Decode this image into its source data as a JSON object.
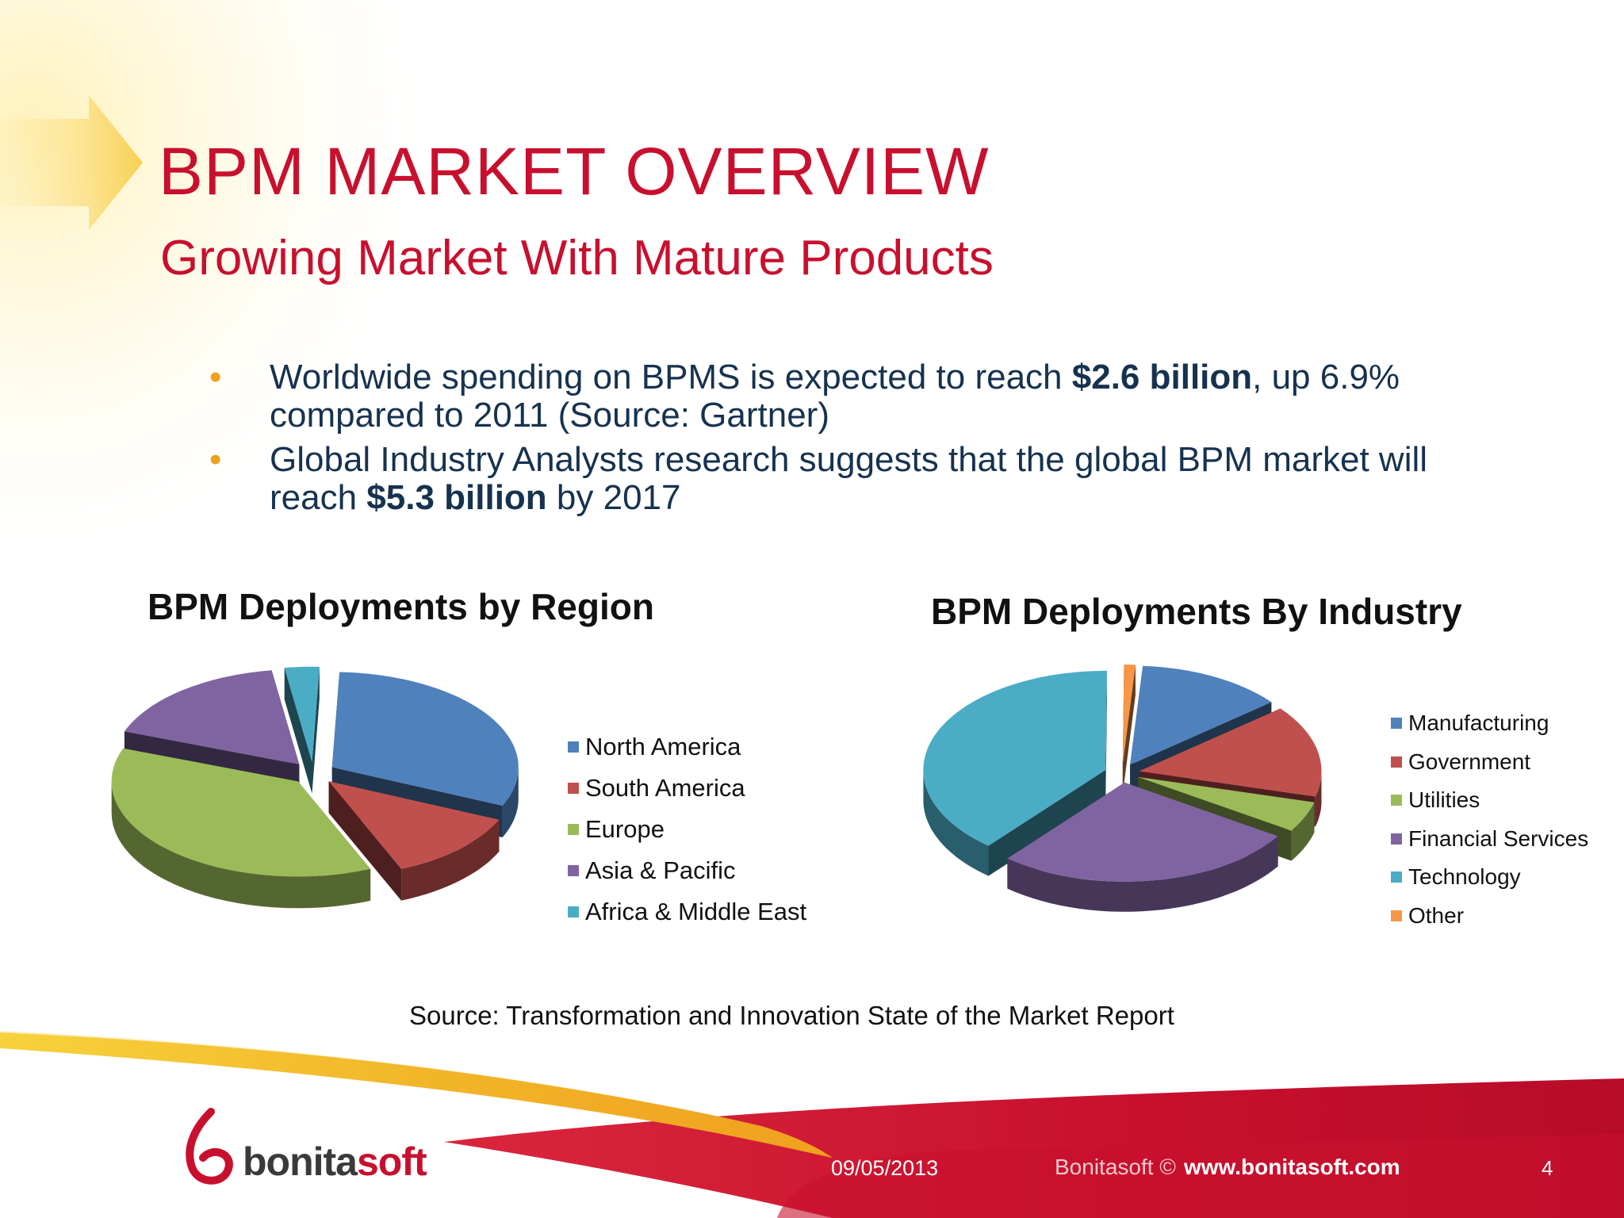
{
  "slide": {
    "title": "BPM MARKET OVERVIEW",
    "subtitle": "Growing Market With Mature Products",
    "bullets": [
      {
        "pre": "Worldwide spending on BPMS is expected to reach ",
        "bold": "$2.6 billion",
        "post": ", up 6.9% compared to 2011 (Source: Gartner)"
      },
      {
        "pre": "Global Industry Analysts research suggests that the global BPM market will reach ",
        "bold": "$5.3 billion",
        "post": " by 2017"
      }
    ],
    "source": "Source: Transformation and Innovation State of the Market Report",
    "footer": {
      "date": "09/05/2013",
      "copyright": "Bonitasoft ©",
      "url": "www.bonitasoft.com",
      "page": "4",
      "logo_text_main": "bonita",
      "logo_text_accent": "soft"
    },
    "colors": {
      "title": "#c8102e",
      "body_text": "#16324f",
      "bullet": "#f0a01e"
    }
  },
  "chart_data": [
    {
      "type": "pie",
      "title": "BPM Deployments by Region",
      "categories": [
        "North America",
        "South America",
        "Europe",
        "Asia & Pacific",
        "Africa & Middle East"
      ],
      "values": [
        31,
        12,
        37,
        17,
        3
      ],
      "colors": [
        "#4f81bd",
        "#c0504d",
        "#9bbb59",
        "#8064a2",
        "#4bacc6"
      ],
      "legend": "right",
      "style": "3d-exploded"
    },
    {
      "type": "pie",
      "title": "BPM Deployments By Industry",
      "categories": [
        "Manufacturing",
        "Government",
        "Utilities",
        "Financial Services",
        "Technology",
        "Other"
      ],
      "values": [
        13,
        15,
        5,
        27,
        39,
        1
      ],
      "colors": [
        "#4f81bd",
        "#c0504d",
        "#9bbb59",
        "#8064a2",
        "#4bacc6",
        "#f79646"
      ],
      "legend": "right",
      "style": "3d-exploded"
    }
  ]
}
